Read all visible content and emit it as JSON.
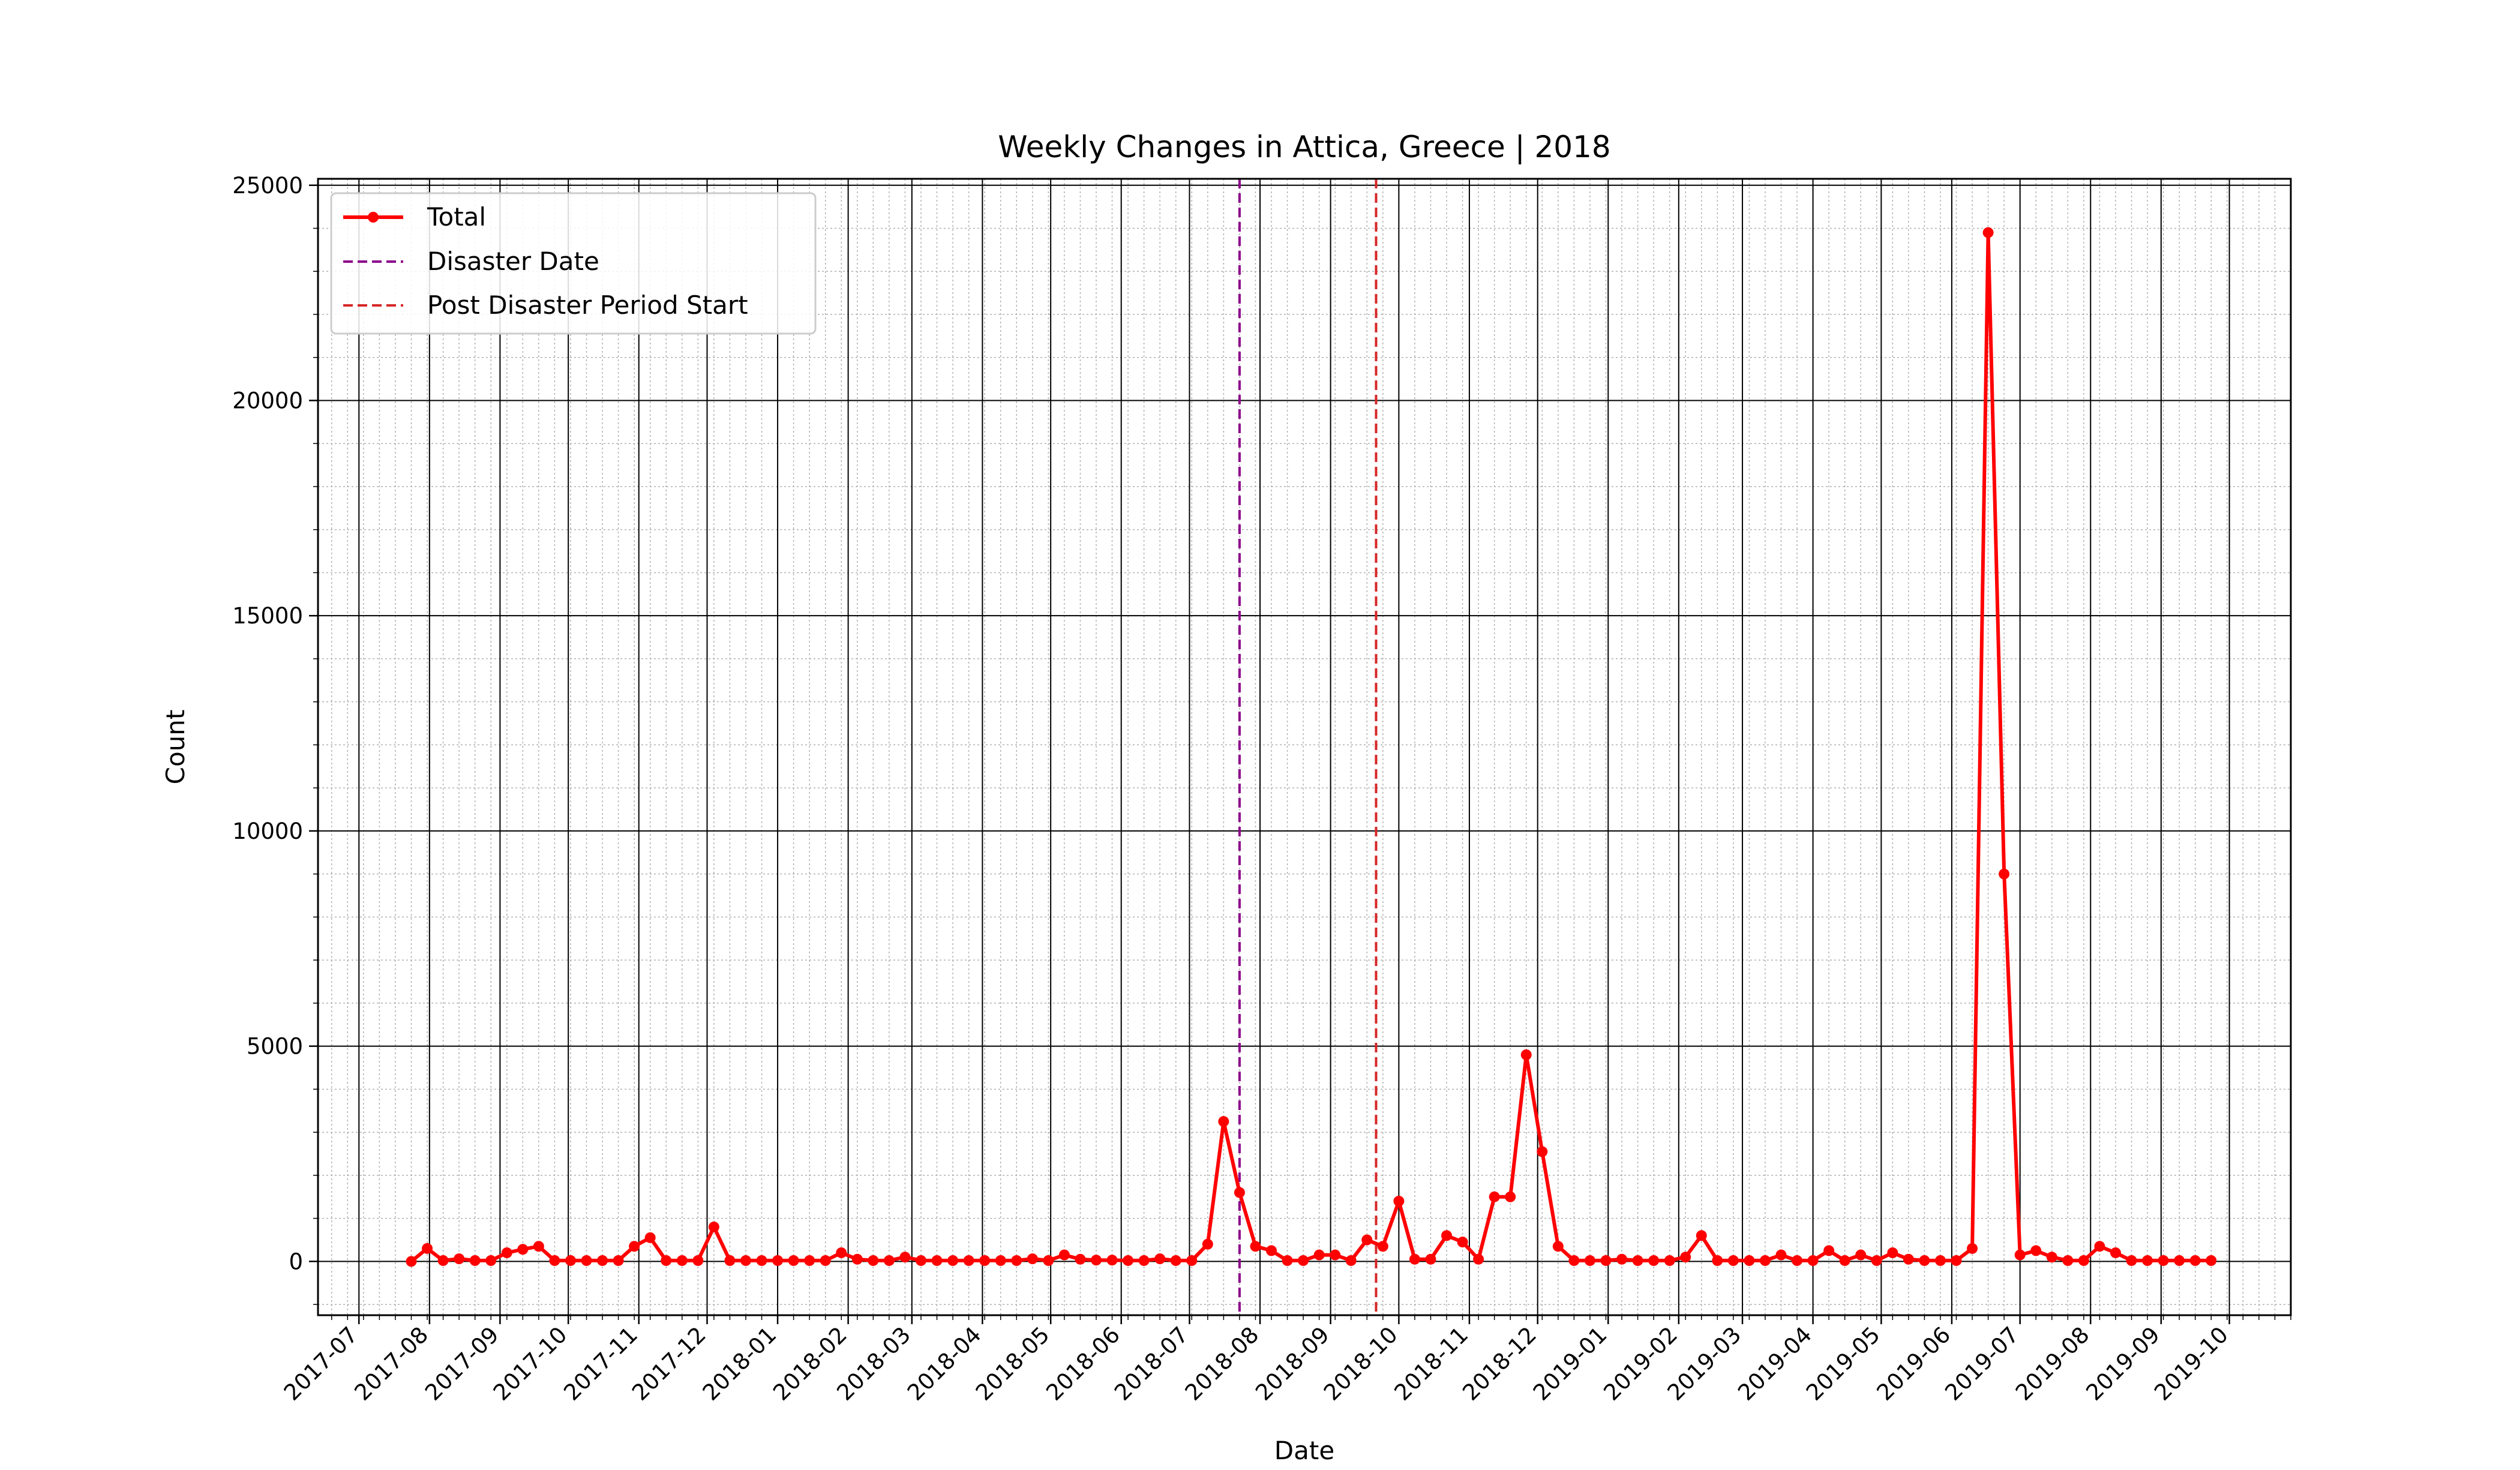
{
  "chart_data": {
    "type": "line",
    "title": "Weekly Changes in Attica, Greece | 2018",
    "xlabel": "Date",
    "ylabel": "Count",
    "x_range": [
      "2017-06-13",
      "2019-10-28"
    ],
    "ylim": [
      -1250,
      25150
    ],
    "y_ticks": [
      0,
      5000,
      10000,
      15000,
      20000,
      25000
    ],
    "y_minor_step": 1000,
    "x_tick_labels": [
      "2017-07",
      "2017-08",
      "2017-09",
      "2017-10",
      "2017-11",
      "2017-12",
      "2018-01",
      "2018-02",
      "2018-03",
      "2018-04",
      "2018-05",
      "2018-06",
      "2018-07",
      "2018-08",
      "2018-09",
      "2018-10",
      "2018-11",
      "2018-12",
      "2019-01",
      "2019-02",
      "2019-03",
      "2019-04",
      "2019-05",
      "2019-06",
      "2019-07",
      "2019-08",
      "2019-09",
      "2019-10"
    ],
    "grid": true,
    "legend_position": "upper left",
    "series": [
      {
        "name": "Total",
        "color": "#ff0000",
        "marker": "circle",
        "points": [
          [
            "2017-07-24",
            0
          ],
          [
            "2017-07-31",
            300
          ],
          [
            "2017-08-07",
            20
          ],
          [
            "2017-08-14",
            60
          ],
          [
            "2017-08-21",
            20
          ],
          [
            "2017-08-28",
            20
          ],
          [
            "2017-09-04",
            200
          ],
          [
            "2017-09-11",
            280
          ],
          [
            "2017-09-18",
            350
          ],
          [
            "2017-09-25",
            20
          ],
          [
            "2017-10-02",
            20
          ],
          [
            "2017-10-09",
            20
          ],
          [
            "2017-10-16",
            20
          ],
          [
            "2017-10-23",
            20
          ],
          [
            "2017-10-30",
            350
          ],
          [
            "2017-11-06",
            550
          ],
          [
            "2017-11-13",
            20
          ],
          [
            "2017-11-20",
            20
          ],
          [
            "2017-11-27",
            20
          ],
          [
            "2017-12-04",
            800
          ],
          [
            "2017-12-11",
            20
          ],
          [
            "2017-12-18",
            20
          ],
          [
            "2017-12-25",
            20
          ],
          [
            "2018-01-01",
            20
          ],
          [
            "2018-01-08",
            20
          ],
          [
            "2018-01-15",
            20
          ],
          [
            "2018-01-22",
            20
          ],
          [
            "2018-01-29",
            200
          ],
          [
            "2018-02-05",
            50
          ],
          [
            "2018-02-12",
            20
          ],
          [
            "2018-02-19",
            20
          ],
          [
            "2018-02-26",
            100
          ],
          [
            "2018-03-05",
            20
          ],
          [
            "2018-03-12",
            20
          ],
          [
            "2018-03-19",
            20
          ],
          [
            "2018-03-26",
            20
          ],
          [
            "2018-04-02",
            20
          ],
          [
            "2018-04-09",
            20
          ],
          [
            "2018-04-16",
            20
          ],
          [
            "2018-04-23",
            60
          ],
          [
            "2018-04-30",
            20
          ],
          [
            "2018-05-07",
            150
          ],
          [
            "2018-05-14",
            50
          ],
          [
            "2018-05-21",
            30
          ],
          [
            "2018-05-28",
            30
          ],
          [
            "2018-06-04",
            20
          ],
          [
            "2018-06-11",
            20
          ],
          [
            "2018-06-18",
            60
          ],
          [
            "2018-06-25",
            20
          ],
          [
            "2018-07-02",
            20
          ],
          [
            "2018-07-09",
            400
          ],
          [
            "2018-07-16",
            3250
          ],
          [
            "2018-07-23",
            1600
          ],
          [
            "2018-07-30",
            350
          ],
          [
            "2018-08-06",
            250
          ],
          [
            "2018-08-13",
            20
          ],
          [
            "2018-08-20",
            20
          ],
          [
            "2018-08-27",
            150
          ],
          [
            "2018-09-03",
            150
          ],
          [
            "2018-09-10",
            20
          ],
          [
            "2018-09-17",
            500
          ],
          [
            "2018-09-24",
            350
          ],
          [
            "2018-10-01",
            1400
          ],
          [
            "2018-10-08",
            50
          ],
          [
            "2018-10-15",
            50
          ],
          [
            "2018-10-22",
            600
          ],
          [
            "2018-10-29",
            450
          ],
          [
            "2018-11-05",
            50
          ],
          [
            "2018-11-12",
            1500
          ],
          [
            "2018-11-19",
            1500
          ],
          [
            "2018-11-26",
            4800
          ],
          [
            "2018-12-03",
            2550
          ],
          [
            "2018-12-10",
            350
          ],
          [
            "2018-12-17",
            20
          ],
          [
            "2018-12-24",
            20
          ],
          [
            "2018-12-31",
            20
          ],
          [
            "2019-01-07",
            50
          ],
          [
            "2019-01-14",
            20
          ],
          [
            "2019-01-21",
            20
          ],
          [
            "2019-01-28",
            20
          ],
          [
            "2019-02-04",
            100
          ],
          [
            "2019-02-11",
            600
          ],
          [
            "2019-02-18",
            20
          ],
          [
            "2019-02-25",
            20
          ],
          [
            "2019-03-04",
            20
          ],
          [
            "2019-03-11",
            20
          ],
          [
            "2019-03-18",
            150
          ],
          [
            "2019-03-25",
            20
          ],
          [
            "2019-04-01",
            20
          ],
          [
            "2019-04-08",
            250
          ],
          [
            "2019-04-15",
            20
          ],
          [
            "2019-04-22",
            150
          ],
          [
            "2019-04-29",
            20
          ],
          [
            "2019-05-06",
            200
          ],
          [
            "2019-05-13",
            50
          ],
          [
            "2019-05-20",
            20
          ],
          [
            "2019-05-27",
            20
          ],
          [
            "2019-06-03",
            20
          ],
          [
            "2019-06-10",
            300
          ],
          [
            "2019-06-17",
            23900
          ],
          [
            "2019-06-24",
            9000
          ],
          [
            "2019-07-01",
            150
          ],
          [
            "2019-07-08",
            250
          ],
          [
            "2019-07-15",
            100
          ],
          [
            "2019-07-22",
            20
          ],
          [
            "2019-07-29",
            20
          ],
          [
            "2019-08-05",
            350
          ],
          [
            "2019-08-12",
            200
          ],
          [
            "2019-08-19",
            20
          ],
          [
            "2019-08-26",
            20
          ],
          [
            "2019-09-02",
            20
          ],
          [
            "2019-09-09",
            20
          ],
          [
            "2019-09-16",
            20
          ],
          [
            "2019-09-23",
            20
          ]
        ]
      },
      {
        "name": "Disaster Date",
        "color": "#8b008b",
        "style": "dashed",
        "x": "2018-07-23"
      },
      {
        "name": "Post Disaster Period Start",
        "color": "#d62728",
        "style": "dashed",
        "x": "2018-09-21"
      }
    ]
  }
}
